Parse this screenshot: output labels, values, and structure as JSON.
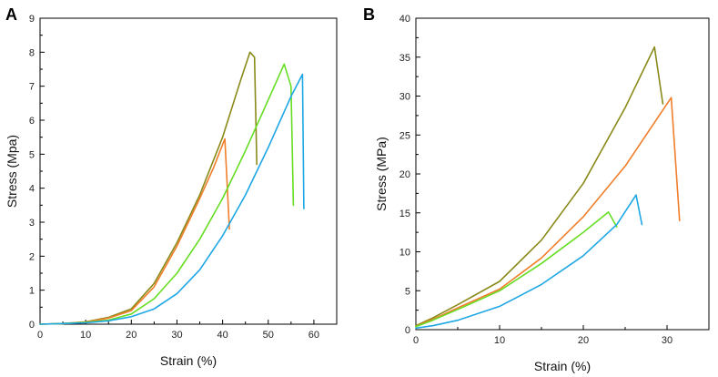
{
  "chart_data": [
    {
      "type": "line",
      "panel_label": "A",
      "xlabel": "Strain (%)",
      "ylabel": "Stress (Mpa)",
      "xlim": [
        0,
        65
      ],
      "ylim": [
        0,
        9
      ],
      "xticks": [
        0,
        10,
        20,
        30,
        40,
        50,
        60
      ],
      "yticks": [
        0,
        1,
        2,
        3,
        4,
        5,
        6,
        7,
        8,
        9
      ],
      "grid": false,
      "series": [
        {
          "name": "olive",
          "color": "#8a8a1a",
          "x": [
            0,
            5,
            10,
            15,
            20,
            25,
            30,
            35,
            40,
            44,
            46,
            47,
            47.5
          ],
          "y": [
            0,
            0.02,
            0.07,
            0.2,
            0.45,
            1.2,
            2.4,
            3.8,
            5.5,
            7.2,
            8.0,
            7.85,
            4.7
          ]
        },
        {
          "name": "orange",
          "color": "#f07e2a",
          "x": [
            0,
            5,
            10,
            15,
            20,
            25,
            30,
            35,
            38,
            40.5,
            41.5
          ],
          "y": [
            0,
            0.02,
            0.06,
            0.18,
            0.4,
            1.1,
            2.3,
            3.7,
            4.6,
            5.45,
            2.8
          ]
        },
        {
          "name": "light-green",
          "color": "#66dd22",
          "x": [
            0,
            5,
            10,
            15,
            20,
            25,
            30,
            35,
            40,
            45,
            50,
            53.5,
            55,
            55.5
          ],
          "y": [
            0,
            0.02,
            0.05,
            0.12,
            0.3,
            0.75,
            1.5,
            2.5,
            3.7,
            5.1,
            6.6,
            7.65,
            7.0,
            3.5
          ]
        },
        {
          "name": "blue",
          "color": "#1ea7e4",
          "x": [
            0,
            5,
            10,
            15,
            20,
            25,
            30,
            35,
            40,
            45,
            50,
            55,
            57.5,
            57.8
          ],
          "y": [
            0,
            0.02,
            0.04,
            0.1,
            0.22,
            0.45,
            0.9,
            1.6,
            2.6,
            3.8,
            5.2,
            6.7,
            7.35,
            3.4
          ]
        }
      ]
    },
    {
      "type": "line",
      "panel_label": "B",
      "xlabel": "Strain (%)",
      "ylabel": "Stress (MPa)",
      "xlim": [
        0,
        35
      ],
      "ylim": [
        0,
        40
      ],
      "xticks": [
        0,
        10,
        20,
        30
      ],
      "yticks": [
        0,
        5,
        10,
        15,
        20,
        25,
        30,
        35,
        40
      ],
      "grid": false,
      "series": [
        {
          "name": "olive",
          "color": "#8a8a1a",
          "x": [
            0,
            1,
            2,
            5,
            10,
            15,
            20,
            25,
            28.5,
            29.5
          ],
          "y": [
            0.5,
            1.0,
            1.5,
            3.2,
            6.2,
            11.5,
            18.8,
            28.5,
            36.3,
            29.0
          ]
        },
        {
          "name": "orange",
          "color": "#f07e2a",
          "x": [
            0,
            1,
            2,
            5,
            10,
            15,
            20,
            25,
            30.5,
            31.5
          ],
          "y": [
            0.4,
            0.9,
            1.3,
            2.8,
            5.2,
            9.2,
            14.5,
            21.0,
            29.8,
            14.0
          ]
        },
        {
          "name": "light-green",
          "color": "#66dd22",
          "x": [
            0,
            1,
            2,
            5,
            10,
            15,
            20,
            23,
            24
          ],
          "y": [
            0.4,
            0.8,
            1.2,
            2.6,
            5.0,
            8.5,
            12.5,
            15.1,
            13.2
          ]
        },
        {
          "name": "blue",
          "color": "#1ea7e4",
          "x": [
            0,
            2,
            5,
            10,
            15,
            20,
            24,
            26.3,
            27
          ],
          "y": [
            0.2,
            0.5,
            1.2,
            3.0,
            5.8,
            9.5,
            13.5,
            17.3,
            13.5
          ]
        }
      ]
    }
  ]
}
